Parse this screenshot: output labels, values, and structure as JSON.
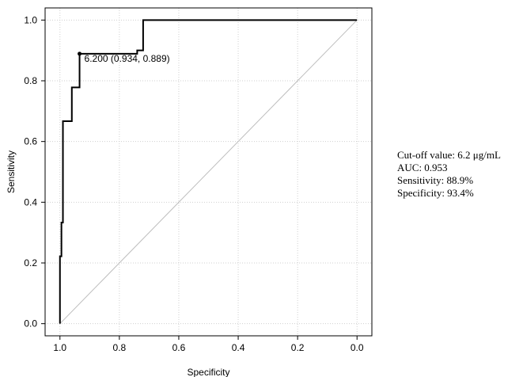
{
  "chart_data": {
    "type": "line",
    "xlabel": "Specificity",
    "ylabel": "Sensitivity",
    "xlim": [
      1.05,
      -0.05
    ],
    "ylim": [
      -0.04,
      1.04
    ],
    "x_reversed": true,
    "grid": true,
    "x_ticks": [
      1.0,
      0.8,
      0.6,
      0.4,
      0.2,
      0.0
    ],
    "x_tick_labels": [
      "1.0",
      "0.8",
      "0.6",
      "0.4",
      "0.2",
      "0.0"
    ],
    "y_ticks": [
      0.0,
      0.2,
      0.4,
      0.6,
      0.8,
      1.0
    ],
    "y_tick_labels": [
      "0.0",
      "0.2",
      "0.4",
      "0.6",
      "0.8",
      "1.0"
    ],
    "series": [
      {
        "x": [
          1.0,
          1.0,
          0.995,
          0.995,
          0.99,
          0.99,
          0.96,
          0.96,
          0.934,
          0.934,
          0.74,
          0.74,
          0.72,
          0.72,
          0.0
        ],
        "y": [
          0.0,
          0.222,
          0.222,
          0.333,
          0.333,
          0.667,
          0.667,
          0.778,
          0.778,
          0.889,
          0.889,
          0.9,
          0.9,
          1.0,
          1.0
        ],
        "color": "#000000"
      }
    ],
    "reference_line": {
      "x": [
        1.0,
        0.0
      ],
      "y": [
        0.0,
        1.0
      ],
      "color": "#bdbdbd"
    },
    "cutoff_point": {
      "x": 0.934,
      "y": 0.889,
      "label": "6.200 (0.934, 0.889)"
    }
  },
  "info": {
    "cutoff": "Cut-off value: 6.2 μg/mL",
    "auc": "AUC: 0.953",
    "sensitivity": "Sensitivity:  88.9%",
    "specificity": "Specificity:  93.4%"
  }
}
